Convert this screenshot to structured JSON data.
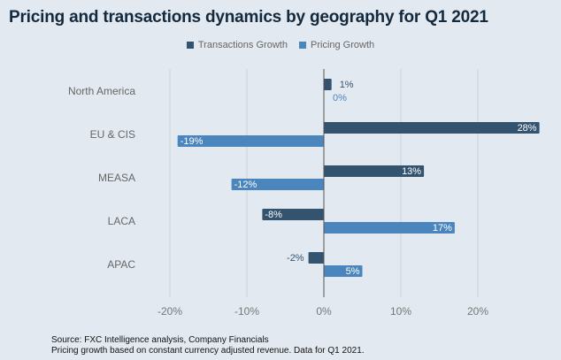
{
  "chart_data": {
    "type": "bar",
    "orientation": "horizontal",
    "title": "Pricing and transactions dynamics by geography for Q1 2021",
    "categories": [
      "North America",
      "EU & CIS",
      "MEASA",
      "LACA",
      "APAC"
    ],
    "series": [
      {
        "name": "Transactions Growth",
        "values": [
          1,
          28,
          13,
          -8,
          -2
        ],
        "labels": [
          "1%",
          "28%",
          "13%",
          "-8%",
          "-2%"
        ],
        "color": "#34536f"
      },
      {
        "name": "Pricing Growth",
        "values": [
          0,
          -19,
          -12,
          17,
          5
        ],
        "labels": [
          "0%",
          "-19%",
          "-12%",
          "17%",
          "5%"
        ],
        "color": "#4a86bd"
      }
    ],
    "xticks": [
      -20,
      -10,
      0,
      10,
      20
    ],
    "xtick_labels": [
      "-20%",
      "-10%",
      "0%",
      "10%",
      "20%"
    ],
    "xlim": [
      -20.5,
      30
    ],
    "grid": true,
    "legend_position": "top"
  },
  "footer": {
    "source": "Source: FXC Intelligence analysis, Company Financials",
    "note": "Pricing growth based on constant currency adjusted revenue. Data for Q1 2021."
  }
}
